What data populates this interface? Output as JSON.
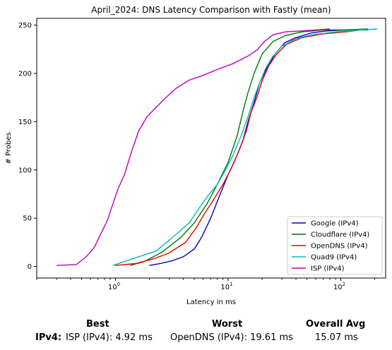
{
  "chart_data": {
    "type": "line",
    "title": "April_2024: DNS Latency Comparison with Fastly (mean)",
    "xlabel": "Latency in ms",
    "ylabel": "# Probes",
    "xscale": "log",
    "xlim": [
      0.2,
      250
    ],
    "ylim": [
      -12,
      257
    ],
    "x_ticks": [
      {
        "value": 1,
        "base": "10",
        "exp": "0"
      },
      {
        "value": 10,
        "base": "10",
        "exp": "1"
      },
      {
        "value": 100,
        "base": "10",
        "exp": "2"
      }
    ],
    "y_ticks": [
      0,
      50,
      100,
      150,
      200,
      250
    ],
    "legend_position": "lower-right",
    "series": [
      {
        "name": "Google (IPv4)",
        "color": "#0000cc",
        "points": [
          [
            2.0,
            1
          ],
          [
            2.5,
            3
          ],
          [
            3.2,
            6
          ],
          [
            4.0,
            10
          ],
          [
            5.0,
            18
          ],
          [
            5.8,
            30
          ],
          [
            7.0,
            50
          ],
          [
            8.5,
            75
          ],
          [
            10.0,
            95
          ],
          [
            11.5,
            110
          ],
          [
            13.5,
            130
          ],
          [
            15.0,
            150
          ],
          [
            17.0,
            170
          ],
          [
            19.0,
            190
          ],
          [
            22.0,
            205
          ],
          [
            26.0,
            220
          ],
          [
            32.0,
            232
          ],
          [
            40.0,
            237
          ],
          [
            55.0,
            242
          ],
          [
            75.0,
            244
          ],
          [
            110.0,
            245
          ],
          [
            175.0,
            245
          ]
        ]
      },
      {
        "name": "Cloudflare (IPv4)",
        "color": "#007700",
        "points": [
          [
            1.35,
            1
          ],
          [
            1.8,
            5
          ],
          [
            2.6,
            15
          ],
          [
            3.8,
            30
          ],
          [
            5.0,
            45
          ],
          [
            6.5,
            65
          ],
          [
            8.0,
            85
          ],
          [
            10.0,
            108
          ],
          [
            12.0,
            135
          ],
          [
            13.5,
            160
          ],
          [
            15.0,
            180
          ],
          [
            17.0,
            200
          ],
          [
            20.0,
            220
          ],
          [
            25.0,
            233
          ],
          [
            32.0,
            239
          ],
          [
            45.0,
            243
          ],
          [
            70.0,
            245
          ],
          [
            110.0,
            245
          ],
          [
            175.0,
            246
          ]
        ]
      },
      {
        "name": "OpenDNS (IPv4)",
        "color": "#ee0000",
        "points": [
          [
            1.0,
            1
          ],
          [
            1.5,
            3
          ],
          [
            2.2,
            8
          ],
          [
            3.0,
            14
          ],
          [
            4.2,
            25
          ],
          [
            5.2,
            40
          ],
          [
            6.2,
            55
          ],
          [
            7.5,
            70
          ],
          [
            9.0,
            85
          ],
          [
            10.5,
            100
          ],
          [
            12.5,
            120
          ],
          [
            14.5,
            140
          ],
          [
            16.0,
            160
          ],
          [
            18.0,
            175
          ],
          [
            20.0,
            192
          ],
          [
            23.0,
            208
          ],
          [
            27.0,
            220
          ],
          [
            33.0,
            230
          ],
          [
            45.0,
            237
          ],
          [
            70.0,
            241
          ],
          [
            110.0,
            243
          ],
          [
            150.0,
            245
          ]
        ]
      },
      {
        "name": "Quad9 (IPv4)",
        "color": "#00bbbb",
        "points": [
          [
            0.95,
            1
          ],
          [
            1.2,
            5
          ],
          [
            1.6,
            10
          ],
          [
            2.3,
            16
          ],
          [
            3.2,
            30
          ],
          [
            4.5,
            45
          ],
          [
            5.5,
            60
          ],
          [
            6.5,
            72
          ],
          [
            8.0,
            85
          ],
          [
            9.5,
            100
          ],
          [
            11.0,
            115
          ],
          [
            13.0,
            135
          ],
          [
            15.0,
            155
          ],
          [
            17.0,
            175
          ],
          [
            19.0,
            190
          ],
          [
            21.5,
            205
          ],
          [
            25.0,
            218
          ],
          [
            30.0,
            228
          ],
          [
            40.0,
            236
          ],
          [
            55.0,
            240
          ],
          [
            90.0,
            243
          ],
          [
            150.0,
            245
          ],
          [
            210.0,
            246
          ]
        ]
      },
      {
        "name": "ISP (IPv4)",
        "color": "#bb00bb",
        "points": [
          [
            0.3,
            1
          ],
          [
            0.45,
            2
          ],
          [
            0.55,
            10
          ],
          [
            0.65,
            20
          ],
          [
            0.75,
            35
          ],
          [
            0.85,
            48
          ],
          [
            0.95,
            65
          ],
          [
            1.05,
            80
          ],
          [
            1.2,
            95
          ],
          [
            1.4,
            120
          ],
          [
            1.6,
            140
          ],
          [
            1.9,
            155
          ],
          [
            2.3,
            165
          ],
          [
            2.8,
            175
          ],
          [
            3.5,
            185
          ],
          [
            4.5,
            193
          ],
          [
            6.0,
            198
          ],
          [
            8.0,
            204
          ],
          [
            11.0,
            210
          ],
          [
            15.0,
            218
          ],
          [
            18.0,
            224
          ],
          [
            21.0,
            233
          ],
          [
            25.0,
            240
          ],
          [
            32.0,
            243
          ],
          [
            45.0,
            244
          ],
          [
            60.0,
            245
          ],
          [
            80.0,
            246
          ]
        ]
      }
    ]
  },
  "summary": {
    "best_heading": "Best",
    "worst_heading": "Worst",
    "avg_heading": "Overall Avg",
    "row_label": "IPv4:",
    "best_value": "ISP (IPv4): 4.92 ms",
    "worst_value": "OpenDNS (IPv4): 19.61 ms",
    "avg_value": "15.07 ms"
  }
}
